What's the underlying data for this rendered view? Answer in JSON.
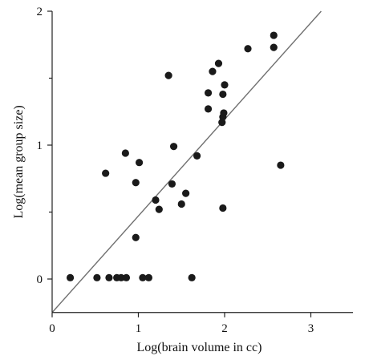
{
  "chart_data": {
    "type": "scatter",
    "title": "",
    "xlabel": "Log(brain volume in cc)",
    "ylabel": "Log(mean group size)",
    "xlim": [
      0,
      3.5
    ],
    "ylim": [
      -0.25,
      2
    ],
    "x_ticks": [
      0,
      1,
      2,
      3
    ],
    "y_ticks": [
      0,
      1,
      2
    ],
    "x_tick_labels": [
      "0",
      "1",
      "2",
      "3"
    ],
    "y_tick_labels": [
      "0",
      "1",
      "2"
    ],
    "minor_y_ticks": [
      0.5,
      1.5
    ],
    "grid": false,
    "legend": "none",
    "colors": {
      "points": "#1a1a1a",
      "line": "#707070",
      "axis": "#222222"
    },
    "fit_line": {
      "x": [
        0,
        3.12
      ],
      "y": [
        -0.25,
        2.0
      ]
    },
    "points": [
      {
        "x": 0.21,
        "y": 0.01
      },
      {
        "x": 0.52,
        "y": 0.01
      },
      {
        "x": 0.66,
        "y": 0.01
      },
      {
        "x": 0.75,
        "y": 0.01
      },
      {
        "x": 0.8,
        "y": 0.01
      },
      {
        "x": 0.86,
        "y": 0.01
      },
      {
        "x": 1.05,
        "y": 0.01
      },
      {
        "x": 1.12,
        "y": 0.01
      },
      {
        "x": 1.62,
        "y": 0.01
      },
      {
        "x": 0.62,
        "y": 0.79
      },
      {
        "x": 0.85,
        "y": 0.94
      },
      {
        "x": 0.97,
        "y": 0.72
      },
      {
        "x": 1.01,
        "y": 0.87
      },
      {
        "x": 0.97,
        "y": 0.31
      },
      {
        "x": 1.2,
        "y": 0.59
      },
      {
        "x": 1.24,
        "y": 0.52
      },
      {
        "x": 1.35,
        "y": 1.52
      },
      {
        "x": 1.39,
        "y": 0.71
      },
      {
        "x": 1.41,
        "y": 0.99
      },
      {
        "x": 1.5,
        "y": 0.56
      },
      {
        "x": 1.55,
        "y": 0.64
      },
      {
        "x": 1.68,
        "y": 0.92
      },
      {
        "x": 1.81,
        "y": 1.39
      },
      {
        "x": 1.81,
        "y": 1.27
      },
      {
        "x": 1.86,
        "y": 1.55
      },
      {
        "x": 1.93,
        "y": 1.61
      },
      {
        "x": 1.97,
        "y": 1.17
      },
      {
        "x": 1.98,
        "y": 1.38
      },
      {
        "x": 1.98,
        "y": 1.21
      },
      {
        "x": 1.99,
        "y": 1.24
      },
      {
        "x": 2.0,
        "y": 1.45
      },
      {
        "x": 1.98,
        "y": 0.53
      },
      {
        "x": 2.27,
        "y": 1.72
      },
      {
        "x": 2.57,
        "y": 1.82
      },
      {
        "x": 2.57,
        "y": 1.73
      },
      {
        "x": 2.65,
        "y": 0.85
      }
    ]
  }
}
